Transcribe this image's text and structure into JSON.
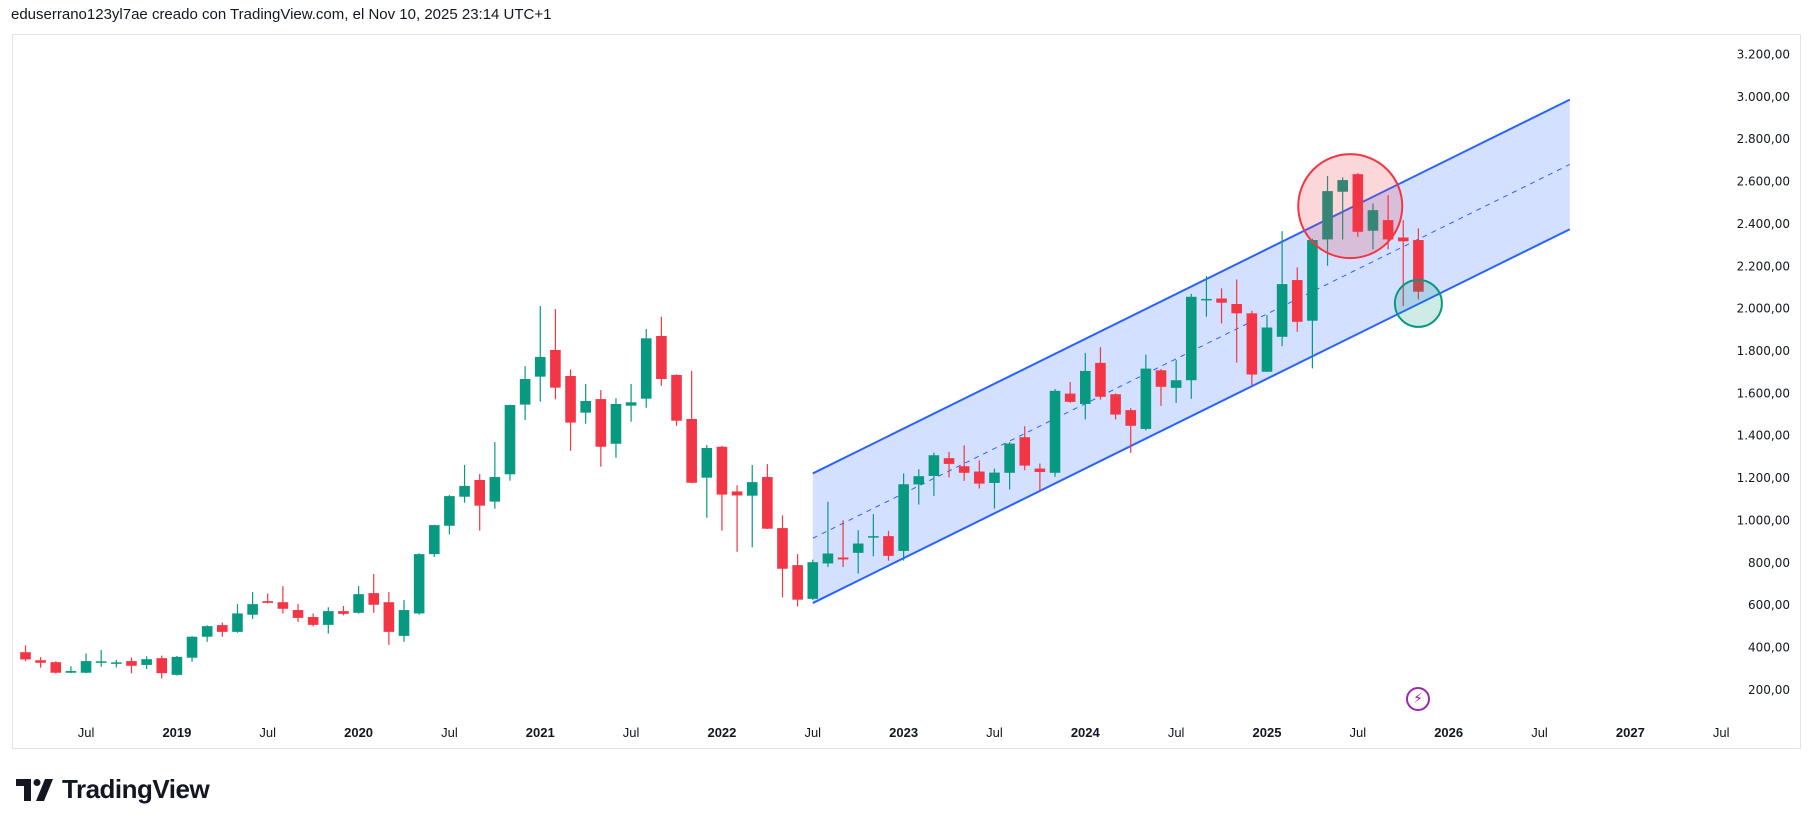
{
  "header": {
    "text": "eduserrano123yl7ae creado con TradingView.com, el Nov 10, 2025 23:14 UTC+1"
  },
  "logo": {
    "text": "TradingView"
  },
  "colors": {
    "up": "#089981",
    "down": "#F23645",
    "channel_line": "#2962FF",
    "channel_fill": "rgba(41,98,255,0.2)",
    "highlight_red": "#F23645",
    "highlight_green": "#089981",
    "event_icon": "#9C27B0"
  },
  "event_icon": "lightning-icon",
  "chart_data": {
    "type": "candlestick",
    "interval": "monthly",
    "ylim": [
      100,
      3300
    ],
    "grid": false,
    "price_ticks": [
      "3.200,00",
      "3.000,00",
      "2.800,00",
      "2.600,00",
      "2.400,00",
      "2.200,00",
      "2.000,00",
      "1.800,00",
      "1.600,00",
      "1.400,00",
      "1.200,00",
      "1.000,00",
      "800,00",
      "600,00",
      "400,00",
      "200,00"
    ],
    "price_tick_values": [
      3200,
      3000,
      2800,
      2600,
      2400,
      2200,
      2000,
      1800,
      1600,
      1400,
      1200,
      1000,
      800,
      600,
      400,
      200
    ],
    "time_ticks": [
      {
        "label": "Jul",
        "month": "2018-07"
      },
      {
        "label": "2019",
        "month": "2019-01"
      },
      {
        "label": "Jul",
        "month": "2019-07"
      },
      {
        "label": "2020",
        "month": "2020-01"
      },
      {
        "label": "Jul",
        "month": "2020-07"
      },
      {
        "label": "2021",
        "month": "2021-01"
      },
      {
        "label": "Jul",
        "month": "2021-07"
      },
      {
        "label": "2022",
        "month": "2022-01"
      },
      {
        "label": "Jul",
        "month": "2022-07"
      },
      {
        "label": "2023",
        "month": "2023-01"
      },
      {
        "label": "Jul",
        "month": "2023-07"
      },
      {
        "label": "2024",
        "month": "2024-01"
      },
      {
        "label": "Jul",
        "month": "2024-07"
      },
      {
        "label": "2025",
        "month": "2025-01"
      },
      {
        "label": "Jul",
        "month": "2025-07"
      },
      {
        "label": "2026",
        "month": "2026-01"
      },
      {
        "label": "Jul",
        "month": "2026-07"
      },
      {
        "label": "2027",
        "month": "2027-01"
      },
      {
        "label": "Jul",
        "month": "2027-07"
      }
    ],
    "ohlc_fields": [
      "month",
      "open",
      "high",
      "low",
      "close"
    ],
    "candles": [
      [
        "2018-03",
        378,
        410,
        335,
        344
      ],
      [
        "2018-04",
        340,
        355,
        305,
        328
      ],
      [
        "2018-05",
        331,
        335,
        278,
        281
      ],
      [
        "2018-06",
        281,
        312,
        279,
        289
      ],
      [
        "2018-07",
        281,
        372,
        279,
        336
      ],
      [
        "2018-08",
        333,
        388,
        309,
        335
      ],
      [
        "2018-09",
        329,
        341,
        306,
        330
      ],
      [
        "2018-10",
        336,
        353,
        278,
        314
      ],
      [
        "2018-11",
        318,
        359,
        298,
        345
      ],
      [
        "2018-12",
        350,
        362,
        254,
        279
      ],
      [
        "2019-01",
        271,
        360,
        268,
        356
      ],
      [
        "2019-02",
        352,
        454,
        333,
        451
      ],
      [
        "2019-03",
        451,
        505,
        427,
        501
      ],
      [
        "2019-04",
        506,
        518,
        451,
        474
      ],
      [
        "2019-05",
        474,
        605,
        470,
        561
      ],
      [
        "2019-06",
        555,
        662,
        535,
        605
      ],
      [
        "2019-07",
        619,
        655,
        608,
        611
      ],
      [
        "2019-08",
        614,
        690,
        561,
        583
      ],
      [
        "2019-09",
        577,
        605,
        521,
        540
      ],
      [
        "2019-10",
        544,
        561,
        500,
        507
      ],
      [
        "2019-11",
        507,
        590,
        466,
        572
      ],
      [
        "2019-12",
        572,
        596,
        552,
        559
      ],
      [
        "2020-01",
        564,
        690,
        560,
        652
      ],
      [
        "2020-02",
        657,
        747,
        564,
        602
      ],
      [
        "2020-03",
        614,
        662,
        413,
        474
      ],
      [
        "2020-04",
        455,
        624,
        427,
        577
      ],
      [
        "2020-05",
        561,
        845,
        555,
        841
      ],
      [
        "2020-06",
        841,
        980,
        828,
        978
      ],
      [
        "2020-07",
        975,
        1120,
        934,
        1115
      ],
      [
        "2020-08",
        1112,
        1262,
        1084,
        1163
      ],
      [
        "2020-09",
        1191,
        1219,
        952,
        1070
      ],
      [
        "2020-10",
        1089,
        1370,
        1055,
        1205
      ],
      [
        "2020-11",
        1218,
        1547,
        1188,
        1545
      ],
      [
        "2020-12",
        1547,
        1729,
        1474,
        1668
      ],
      [
        "2021-01",
        1679,
        2012,
        1561,
        1772
      ],
      [
        "2021-02",
        1805,
        1998,
        1572,
        1627
      ],
      [
        "2021-03",
        1682,
        1713,
        1329,
        1462
      ],
      [
        "2021-04",
        1509,
        1644,
        1457,
        1564
      ],
      [
        "2021-05",
        1573,
        1616,
        1254,
        1348
      ],
      [
        "2021-06",
        1362,
        1577,
        1296,
        1550
      ],
      [
        "2021-07",
        1542,
        1644,
        1466,
        1558
      ],
      [
        "2021-08",
        1575,
        1904,
        1532,
        1860
      ],
      [
        "2021-09",
        1871,
        1962,
        1636,
        1668
      ],
      [
        "2021-10",
        1687,
        1690,
        1447,
        1471
      ],
      [
        "2021-11",
        1479,
        1706,
        1176,
        1178
      ],
      [
        "2021-12",
        1202,
        1356,
        1013,
        1342
      ],
      [
        "2022-01",
        1348,
        1352,
        952,
        1122
      ],
      [
        "2022-02",
        1137,
        1166,
        852,
        1118
      ],
      [
        "2022-03",
        1117,
        1262,
        873,
        1181
      ],
      [
        "2022-04",
        1205,
        1266,
        960,
        961
      ],
      [
        "2022-05",
        964,
        1024,
        637,
        772
      ],
      [
        "2022-06",
        789,
        841,
        594,
        626
      ],
      [
        "2022-07",
        630,
        815,
        625,
        803
      ],
      [
        "2022-08",
        797,
        1088,
        780,
        844
      ],
      [
        "2022-09",
        825,
        1001,
        780,
        816
      ],
      [
        "2022-10",
        847,
        954,
        749,
        891
      ],
      [
        "2022-11",
        922,
        1030,
        831,
        926
      ],
      [
        "2022-12",
        926,
        951,
        810,
        833
      ],
      [
        "2023-01",
        856,
        1222,
        810,
        1171
      ],
      [
        "2023-02",
        1170,
        1242,
        1075,
        1209
      ],
      [
        "2023-03",
        1210,
        1320,
        1116,
        1308
      ],
      [
        "2023-04",
        1294,
        1324,
        1203,
        1267
      ],
      [
        "2023-05",
        1256,
        1355,
        1187,
        1225
      ],
      [
        "2023-06",
        1231,
        1284,
        1151,
        1174
      ],
      [
        "2023-07",
        1177,
        1245,
        1056,
        1226
      ],
      [
        "2023-08",
        1225,
        1370,
        1146,
        1363
      ],
      [
        "2023-09",
        1393,
        1445,
        1237,
        1259
      ],
      [
        "2023-10",
        1245,
        1269,
        1140,
        1229
      ],
      [
        "2023-11",
        1225,
        1620,
        1206,
        1612
      ],
      [
        "2023-12",
        1599,
        1654,
        1555,
        1560
      ],
      [
        "2024-01",
        1550,
        1791,
        1477,
        1706
      ],
      [
        "2024-02",
        1744,
        1818,
        1571,
        1584
      ],
      [
        "2024-03",
        1596,
        1600,
        1477,
        1500
      ],
      [
        "2024-04",
        1521,
        1530,
        1319,
        1447
      ],
      [
        "2024-05",
        1432,
        1783,
        1425,
        1717
      ],
      [
        "2024-06",
        1709,
        1715,
        1541,
        1631
      ],
      [
        "2024-07",
        1626,
        1757,
        1555,
        1662
      ],
      [
        "2024-08",
        1662,
        2070,
        1574,
        2056
      ],
      [
        "2024-09",
        2042,
        2154,
        1962,
        2046
      ],
      [
        "2024-10",
        2048,
        2096,
        1930,
        2028
      ],
      [
        "2024-11",
        2022,
        2138,
        1745,
        1978
      ],
      [
        "2024-12",
        1978,
        1990,
        1639,
        1689
      ],
      [
        "2025-01",
        1702,
        1970,
        1702,
        1911
      ],
      [
        "2025-02",
        1867,
        2366,
        1823,
        2116
      ],
      [
        "2025-03",
        2135,
        2195,
        1891,
        1938
      ],
      [
        "2025-04",
        1943,
        2330,
        1718,
        2324
      ],
      [
        "2025-05",
        2327,
        2626,
        2203,
        2555
      ],
      [
        "2025-06",
        2552,
        2620,
        2327,
        2607
      ],
      [
        "2025-07",
        2635,
        2640,
        2340,
        2363
      ],
      [
        "2025-08",
        2368,
        2497,
        2280,
        2465
      ],
      [
        "2025-09",
        2418,
        2536,
        2280,
        2327
      ],
      [
        "2025-10",
        2336,
        2418,
        2012,
        2318
      ],
      [
        "2025-11",
        2324,
        2379,
        2044,
        2080
      ]
    ],
    "drawings": {
      "parallel_channel": {
        "start_month": "2022-07",
        "end_month": "2026-09",
        "upper": [
          1222,
          2987
        ],
        "lower": [
          610,
          2375
        ],
        "midline": "dashed"
      },
      "highlight_circles": [
        {
          "color": "red",
          "center_month": "2025-06",
          "center_offset_months": 0.5,
          "center_price": 2484
        },
        {
          "color": "green",
          "center_month": "2025-11",
          "center_offset_months": 0,
          "center_price": 2025
        }
      ]
    }
  }
}
